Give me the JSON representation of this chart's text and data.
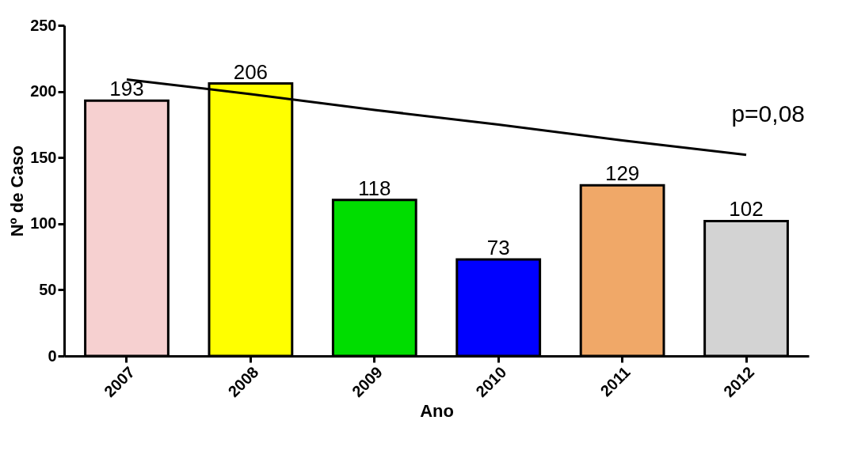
{
  "chart_data": {
    "type": "bar",
    "xlabel": "Ano",
    "ylabel": "Nº de Caso",
    "categories": [
      "2007",
      "2008",
      "2009",
      "2010",
      "2011",
      "2012"
    ],
    "series": [
      {
        "values": [
          193,
          206,
          118,
          73,
          129,
          102
        ],
        "value_labels": [
          "193",
          "206",
          "118",
          "73",
          "129",
          "102"
        ],
        "colors": [
          "#f6d0d0",
          "#ffff00",
          "#00dd00",
          "#0000ff",
          "#f0a868",
          "#d3d3d3"
        ]
      },
      {
        "type": "line",
        "color": "#000000",
        "values": [
          209,
          198,
          186,
          175,
          163,
          152
        ]
      }
    ],
    "ylim": [
      0,
      250
    ],
    "yticks": [
      0,
      50,
      100,
      150,
      200,
      250
    ],
    "grid": false,
    "annotations": [
      "p=0,08"
    ]
  }
}
